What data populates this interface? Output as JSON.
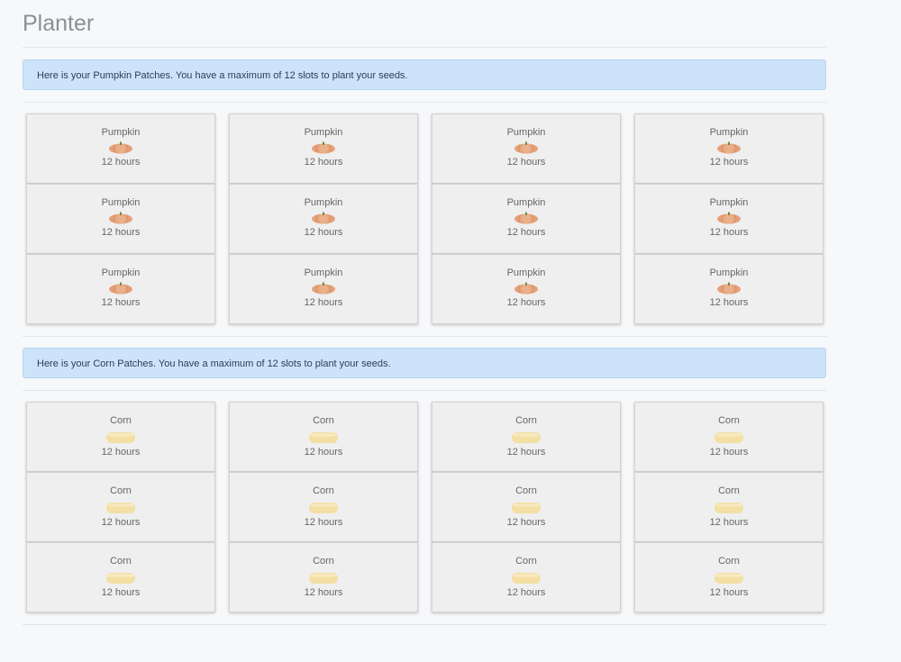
{
  "page": {
    "title": "Planter"
  },
  "sections": [
    {
      "id": "pumpkin",
      "alert": "Here is your Pumpkin Patches. You have a maximum of 12 slots to plant your seeds.",
      "icon": "pumpkin-icon",
      "slots": [
        {
          "name": "Pumpkin",
          "time": "12 hours"
        },
        {
          "name": "Pumpkin",
          "time": "12 hours"
        },
        {
          "name": "Pumpkin",
          "time": "12 hours"
        },
        {
          "name": "Pumpkin",
          "time": "12 hours"
        },
        {
          "name": "Pumpkin",
          "time": "12 hours"
        },
        {
          "name": "Pumpkin",
          "time": "12 hours"
        },
        {
          "name": "Pumpkin",
          "time": "12 hours"
        },
        {
          "name": "Pumpkin",
          "time": "12 hours"
        },
        {
          "name": "Pumpkin",
          "time": "12 hours"
        },
        {
          "name": "Pumpkin",
          "time": "12 hours"
        },
        {
          "name": "Pumpkin",
          "time": "12 hours"
        },
        {
          "name": "Pumpkin",
          "time": "12 hours"
        }
      ]
    },
    {
      "id": "corn",
      "alert": "Here is your Corn Patches. You have a maximum of 12 slots to plant your seeds.",
      "icon": "corn-icon",
      "slots": [
        {
          "name": "Corn",
          "time": "12 hours"
        },
        {
          "name": "Corn",
          "time": "12 hours"
        },
        {
          "name": "Corn",
          "time": "12 hours"
        },
        {
          "name": "Corn",
          "time": "12 hours"
        },
        {
          "name": "Corn",
          "time": "12 hours"
        },
        {
          "name": "Corn",
          "time": "12 hours"
        },
        {
          "name": "Corn",
          "time": "12 hours"
        },
        {
          "name": "Corn",
          "time": "12 hours"
        },
        {
          "name": "Corn",
          "time": "12 hours"
        },
        {
          "name": "Corn",
          "time": "12 hours"
        },
        {
          "name": "Corn",
          "time": "12 hours"
        },
        {
          "name": "Corn",
          "time": "12 hours"
        }
      ]
    }
  ],
  "colors": {
    "alert_bg": "#cde3fa",
    "pumpkin": "#e5a27a",
    "pumpkin_stem": "#6f8a4a",
    "corn": "#f3dfa3"
  }
}
